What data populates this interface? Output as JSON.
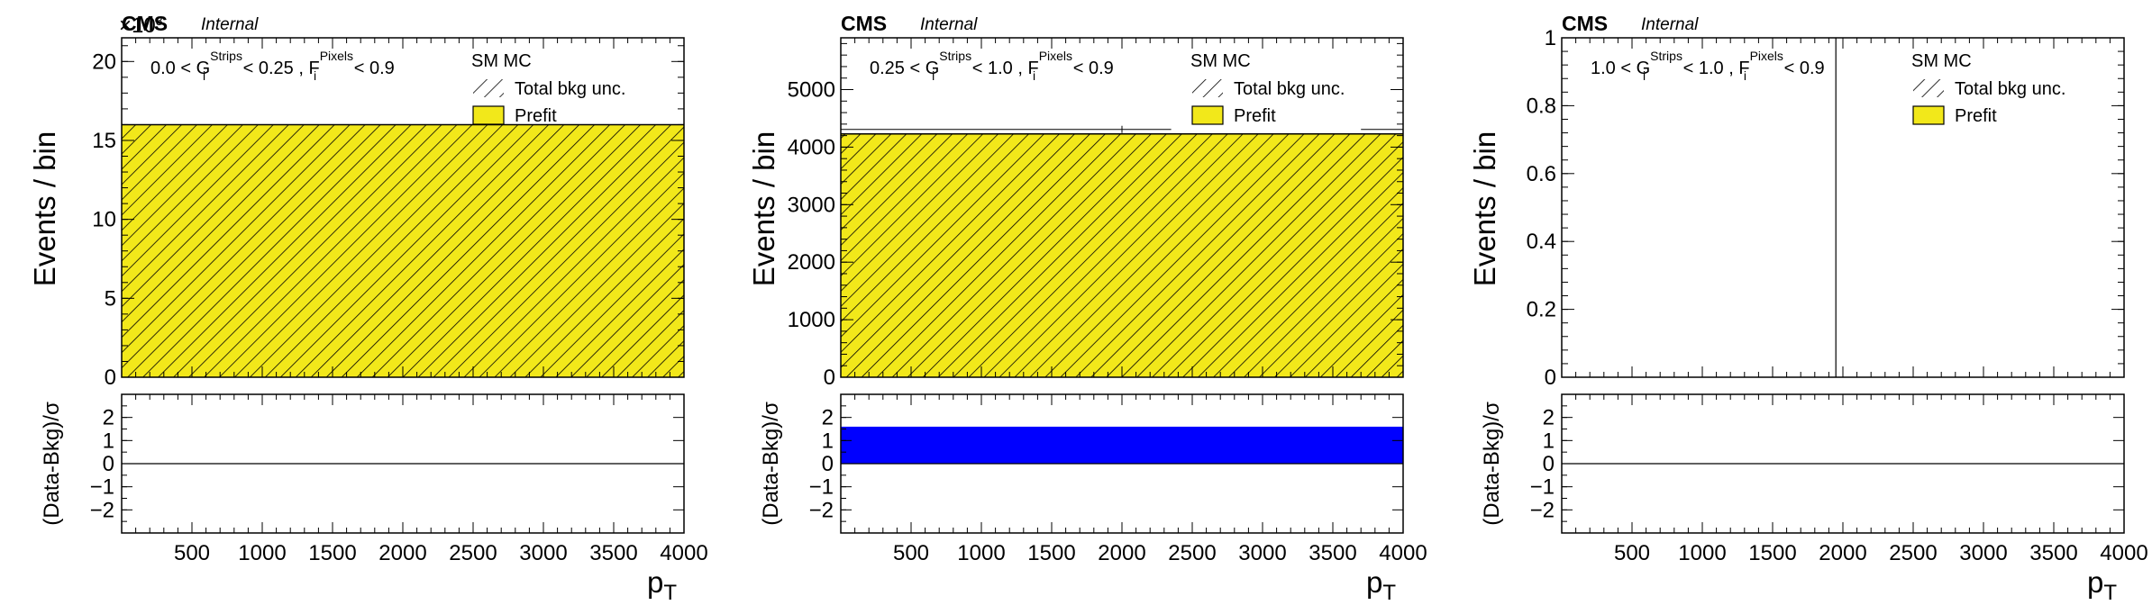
{
  "panels": [
    {
      "cms": "CMS",
      "internal": "Internal",
      "region": {
        "a": "0.0 < G",
        "sub1": "i",
        "sup1": "Strips",
        "b": " < 0.25 , F",
        "sub2": "i",
        "sup2": "Pixels",
        "c": " < 0.9"
      },
      "exponent": "×10",
      "y_title": "Events / bin",
      "y_ticks": [
        "0",
        "5",
        "10",
        "15",
        "20"
      ],
      "y_tick_values": [
        0,
        5,
        10,
        15,
        20
      ],
      "legend": {
        "title": "SM MC",
        "items": [
          "Total bkg unc.",
          "Prefit"
        ]
      }
    },
    {
      "cms": "CMS",
      "internal": "Internal",
      "region": {
        "a": "0.25 < G",
        "sub1": "i",
        "sup1": "Strips",
        "b": " < 1.0 , F",
        "sub2": "i",
        "sup2": "Pixels",
        "c": " < 0.9"
      },
      "exponent": "",
      "y_title": "Events / bin",
      "y_ticks": [
        "0",
        "1000",
        "2000",
        "3000",
        "4000",
        "5000"
      ],
      "y_tick_values": [
        0,
        1000,
        2000,
        3000,
        4000,
        5000
      ],
      "legend": {
        "title": "SM MC",
        "items": [
          "Total bkg unc.",
          "Prefit"
        ]
      }
    },
    {
      "cms": "CMS",
      "internal": "Internal",
      "region": {
        "a": "1.0 < G",
        "sub1": "i",
        "sup1": "Strips",
        "b": " < 1.0 , F",
        "sub2": "i",
        "sup2": "Pixels",
        "c": " < 0.9"
      },
      "exponent": "",
      "y_title": "Events / bin",
      "y_ticks": [
        "0",
        "0.2",
        "0.4",
        "0.6",
        "0.8",
        "1"
      ],
      "y_tick_values": [
        0,
        0.2,
        0.4,
        0.6,
        0.8,
        1.0
      ],
      "legend": {
        "title": "SM MC",
        "items": [
          "Total bkg unc.",
          "Prefit"
        ]
      }
    }
  ],
  "ratio": {
    "y_title": "(Data-Bkg)/σ",
    "y_ticks": [
      "−2",
      "−1",
      "0",
      "1",
      "2"
    ]
  },
  "x_axis": {
    "title": "p",
    "title_sub": "T",
    "ticks": [
      "500",
      "1000",
      "1500",
      "2000",
      "2500",
      "3000",
      "3500",
      "4000"
    ]
  },
  "colors": {
    "prefit": "#f2e81a",
    "hatch": "#000000",
    "pull": "#0000ff"
  },
  "chart_data": [
    {
      "type": "bar",
      "title": "",
      "xlabel": "p_T",
      "ylabel": "Events / bin",
      "xlim": [
        0,
        4000
      ],
      "ylim": [
        0,
        21.5
      ],
      "bins": [
        [
          0,
          4000
        ]
      ],
      "series": [
        {
          "name": "Prefit",
          "values": [
            16
          ]
        }
      ],
      "ratio": {
        "ylabel": "(Data-Bkg)/σ",
        "ylim": [
          -3,
          3
        ],
        "values": [
          0
        ]
      }
    },
    {
      "type": "bar",
      "title": "",
      "xlabel": "p_T",
      "ylabel": "Events / bin",
      "xlim": [
        0,
        4000
      ],
      "ylim": [
        0,
        5900
      ],
      "bins": [
        [
          0,
          4000
        ]
      ],
      "series": [
        {
          "name": "Prefit",
          "values": [
            4230
          ]
        }
      ],
      "ratio": {
        "ylabel": "(Data-Bkg)/σ",
        "ylim": [
          -3,
          3
        ],
        "values": [
          1.6
        ]
      }
    },
    {
      "type": "bar",
      "title": "",
      "xlabel": "p_T",
      "ylabel": "Events / bin",
      "xlim": [
        0,
        4000
      ],
      "ylim": [
        0,
        1.0
      ],
      "bins": [
        [
          0,
          4000
        ]
      ],
      "series": [
        {
          "name": "Prefit",
          "values": [
            0
          ]
        }
      ],
      "ratio": {
        "ylabel": "(Data-Bkg)/σ",
        "ylim": [
          -3,
          3
        ],
        "values": [
          0
        ]
      }
    }
  ]
}
